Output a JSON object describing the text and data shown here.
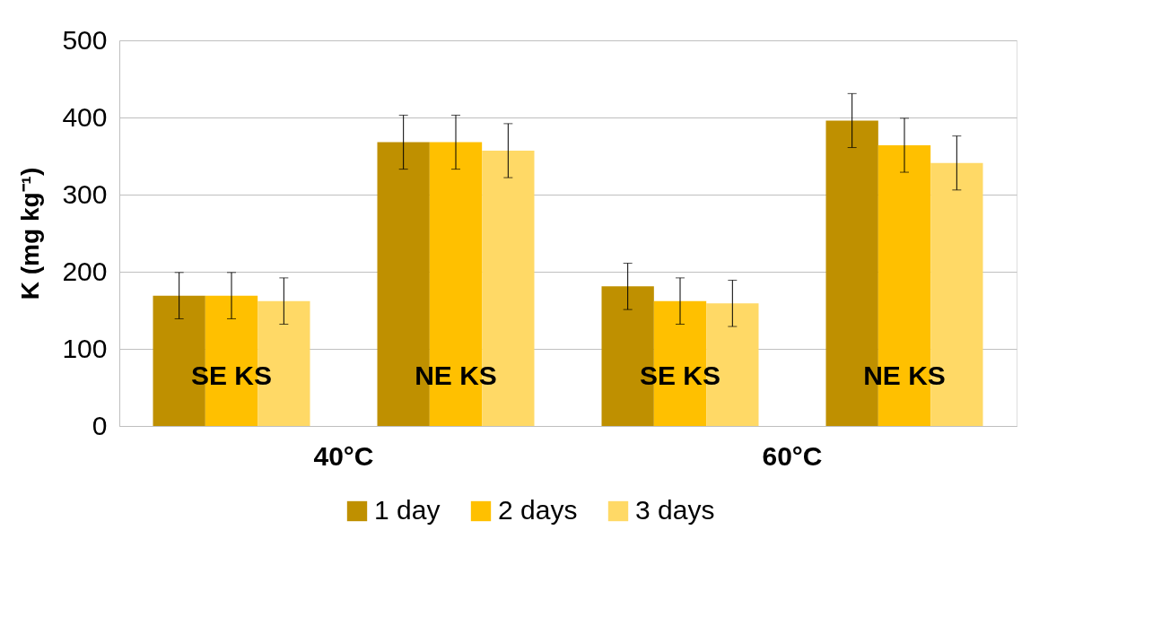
{
  "chart_data": {
    "type": "bar",
    "ylabel": "K (mg kg⁻¹)",
    "categories": [
      "SE KS",
      "NE KS",
      "SE KS",
      "NE KS"
    ],
    "series": [
      {
        "name": "1 day",
        "color": "#bf9000",
        "values": [
          169,
          368,
          181,
          396
        ],
        "errors": [
          30,
          35,
          30,
          35
        ]
      },
      {
        "name": "2 days",
        "color": "#ffc000",
        "values": [
          169,
          368,
          162,
          364
        ],
        "errors": [
          30,
          35,
          30,
          35
        ]
      },
      {
        "name": "3 days",
        "color": "#ffd966",
        "values": [
          162,
          357,
          159,
          341
        ],
        "errors": [
          30,
          35,
          30,
          35
        ]
      }
    ],
    "annotations": [
      "40°C",
      "60°C"
    ],
    "ylim": [
      0,
      500
    ],
    "yticks": [
      0,
      100,
      200,
      300,
      400,
      500
    ],
    "grid": "y",
    "legend": "bottom"
  }
}
